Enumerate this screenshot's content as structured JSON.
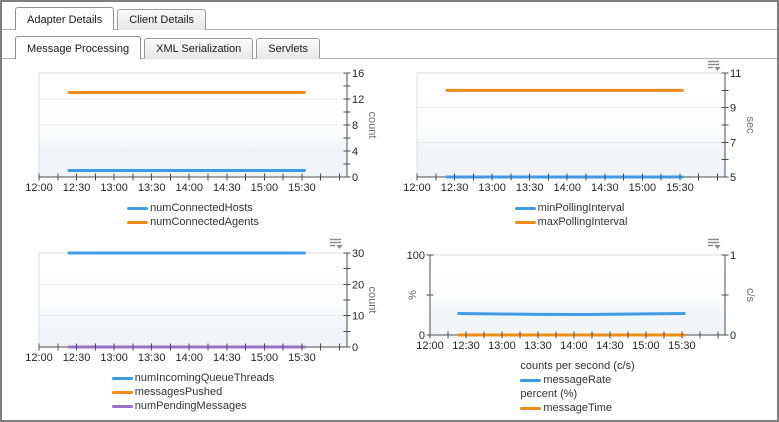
{
  "tabs_primary": {
    "items": [
      {
        "label": "Adapter Details",
        "active": true
      },
      {
        "label": "Client Details",
        "active": false
      }
    ]
  },
  "tabs_secondary": {
    "items": [
      {
        "label": "Message Processing",
        "active": true
      },
      {
        "label": "XML Serialization",
        "active": false
      },
      {
        "label": "Servlets",
        "active": false
      }
    ]
  },
  "colors": {
    "series_blue": "#3f9ae8",
    "series_orange": "#ef8c17",
    "series_purple": "#9673c9"
  },
  "chart_data": [
    {
      "type": "line",
      "name": "connected-hosts-agents",
      "has_menu": false,
      "x": {
        "labels": [
          "12:00",
          "12:30",
          "13:00",
          "13:30",
          "14:00",
          "14:30",
          "15:00",
          "15:30"
        ],
        "label_step_min": 30,
        "minor_step_min": 15,
        "domain_max_min": 246
      },
      "y_right": {
        "title": "count",
        "min": 0,
        "max": 16,
        "majors": [
          0,
          4,
          8,
          12,
          16
        ],
        "minor_step": 2
      },
      "y_left": null,
      "series": [
        {
          "name": "numConnectedHosts",
          "color": "#3f9ae8",
          "axis": "right",
          "points": [
            [
              24,
              1
            ],
            [
              212,
              1
            ]
          ]
        },
        {
          "name": "numConnectedAgents",
          "color": "#ef8c17",
          "axis": "right",
          "points": [
            [
              24,
              13
            ],
            [
              212,
              13
            ]
          ]
        }
      ],
      "legend": [
        {
          "label": "numConnectedHosts",
          "color": "#3f9ae8"
        },
        {
          "label": "numConnectedAgents",
          "color": "#ef8c17"
        }
      ]
    },
    {
      "type": "line",
      "name": "polling-interval",
      "has_menu": true,
      "x": {
        "labels": [
          "12:00",
          "12:30",
          "13:00",
          "13:30",
          "14:00",
          "14:30",
          "15:00",
          "15:30"
        ],
        "label_step_min": 30,
        "minor_step_min": 15,
        "domain_max_min": 246
      },
      "y_right": {
        "title": "sec",
        "min": 5,
        "max": 11,
        "majors": [
          5,
          7,
          9,
          11
        ],
        "minor_step": 1
      },
      "y_left": null,
      "series": [
        {
          "name": "minPollingInterval",
          "color": "#3f9ae8",
          "axis": "right",
          "points": [
            [
              24,
              5
            ],
            [
              212,
              5
            ]
          ]
        },
        {
          "name": "maxPollingInterval",
          "color": "#ef8c17",
          "axis": "right",
          "points": [
            [
              24,
              10
            ],
            [
              212,
              10
            ]
          ]
        }
      ],
      "legend": [
        {
          "label": "minPollingInterval",
          "color": "#3f9ae8"
        },
        {
          "label": "maxPollingInterval",
          "color": "#ef8c17"
        }
      ]
    },
    {
      "type": "line",
      "name": "queue-messages",
      "has_menu": true,
      "x": {
        "labels": [
          "12:00",
          "12:30",
          "13:00",
          "13:30",
          "14:00",
          "14:30",
          "15:00",
          "15:30"
        ],
        "label_step_min": 30,
        "minor_step_min": 15,
        "domain_max_min": 246
      },
      "y_right": {
        "title": "count",
        "min": 0,
        "max": 30,
        "majors": [
          0,
          10,
          20,
          30
        ],
        "minor_step": 5
      },
      "y_left": null,
      "series": [
        {
          "name": "numIncomingQueueThreads",
          "color": "#3f9ae8",
          "axis": "right",
          "points": [
            [
              24,
              30
            ],
            [
              212,
              30
            ]
          ]
        },
        {
          "name": "messagesPushed",
          "color": "#ef8c17",
          "axis": "right",
          "points": [
            [
              24,
              0
            ],
            [
              212,
              0
            ]
          ]
        },
        {
          "name": "numPendingMessages",
          "color": "#9673c9",
          "axis": "right",
          "points": [
            [
              24,
              0
            ],
            [
              212,
              0
            ]
          ]
        }
      ],
      "legend": [
        {
          "label": "numIncomingQueueThreads",
          "color": "#3f9ae8"
        },
        {
          "label": "messagesPushed",
          "color": "#ef8c17"
        },
        {
          "label": "numPendingMessages",
          "color": "#9673c9"
        }
      ]
    },
    {
      "type": "line",
      "name": "message-rate-time",
      "has_menu": true,
      "x": {
        "labels": [
          "12:00",
          "12:30",
          "13:00",
          "13:30",
          "14:00",
          "14:30",
          "15:00",
          "15:30"
        ],
        "label_step_min": 30,
        "minor_step_min": 15,
        "domain_max_min": 246
      },
      "y_right": {
        "title": "c/s",
        "min": 0,
        "max": 1,
        "majors": [
          0,
          1
        ],
        "minor_step": 0.5
      },
      "y_left": {
        "title": "%",
        "min": 0,
        "max": 100,
        "majors": [
          0,
          100
        ],
        "minor_step": 50
      },
      "series": [
        {
          "name": "messageRate",
          "color": "#3f9ae8",
          "axis": "right",
          "points": [
            [
              24,
              0.268
            ],
            [
              90,
              0.258
            ],
            [
              130,
              0.256
            ],
            [
              170,
              0.262
            ],
            [
              212,
              0.268
            ]
          ]
        },
        {
          "name": "messageTime",
          "color": "#ef8c17",
          "axis": "left",
          "points": [
            [
              24,
              0
            ],
            [
              212,
              0
            ]
          ]
        }
      ],
      "legend": [
        {
          "label": "counts per second (c/s)"
        },
        {
          "label": "messageRate",
          "color": "#3f9ae8"
        },
        {
          "label": "percent (%)"
        },
        {
          "label": "messageTime",
          "color": "#ef8c17"
        }
      ]
    }
  ]
}
